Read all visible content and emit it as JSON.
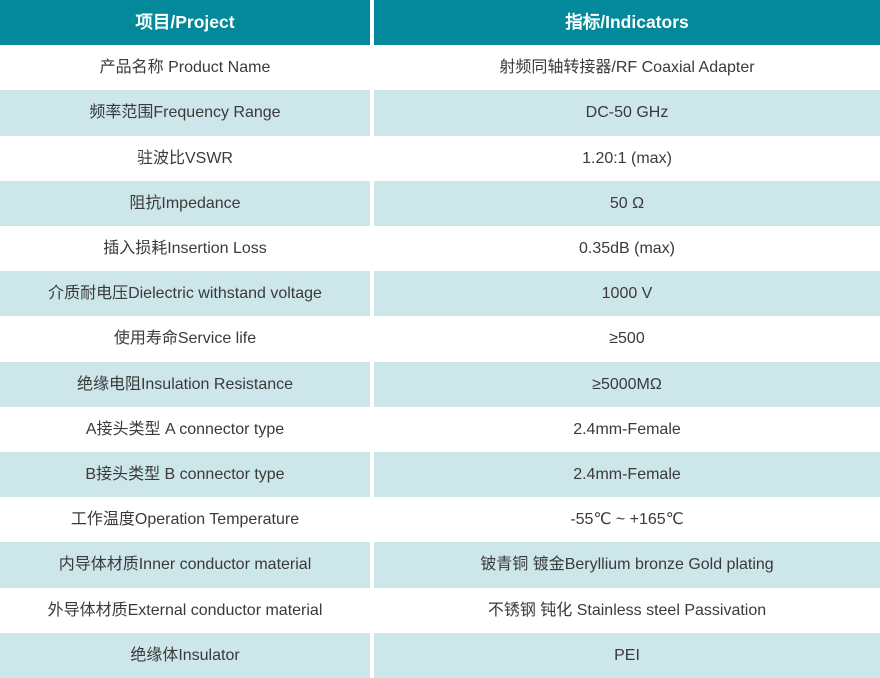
{
  "table": {
    "header": {
      "project": "项目/Project",
      "indicators": "指标/Indicators"
    },
    "rows": [
      {
        "project": "产品名称 Product Name",
        "indicator": "射频同轴转接器/RF Coaxial Adapter"
      },
      {
        "project": "频率范围Frequency Range",
        "indicator": "DC-50 GHz"
      },
      {
        "project": "驻波比VSWR",
        "indicator": "1.20:1 (max)"
      },
      {
        "project": "阻抗Impedance",
        "indicator": "50 Ω"
      },
      {
        "project": "插入损耗Insertion Loss",
        "indicator": "0.35dB (max)"
      },
      {
        "project": "介质耐电压Dielectric withstand voltage",
        "indicator": "1000 V"
      },
      {
        "project": "使用寿命Service life",
        "indicator": "≥500"
      },
      {
        "project": "绝缘电阻Insulation Resistance",
        "indicator": "≥5000MΩ"
      },
      {
        "project": "A接头类型 A connector type",
        "indicator": "2.4mm-Female"
      },
      {
        "project": "B接头类型 B connector type",
        "indicator": "2.4mm-Female"
      },
      {
        "project": "工作温度Operation Temperature",
        "indicator": "-55℃ ~ +165℃"
      },
      {
        "project": "内导体材质Inner conductor material",
        "indicator": "铍青铜 镀金Beryllium bronze Gold plating"
      },
      {
        "project": "外导体材质External conductor material",
        "indicator": "不锈钢 钝化 Stainless steel Passivation"
      },
      {
        "project": "绝缘体Insulator",
        "indicator": "PEI"
      }
    ],
    "colors": {
      "header_bg": "#038999",
      "header_text": "#ffffff",
      "tint_bg": "#cde6ea",
      "row_bg": "#ffffff",
      "body_text": "#3a3a3a"
    }
  }
}
